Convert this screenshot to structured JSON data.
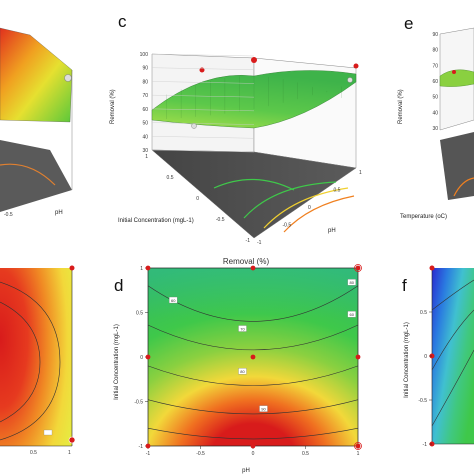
{
  "panel_labels": {
    "c": "c",
    "d": "d",
    "e": "e",
    "f": "f"
  },
  "colors": {
    "high": "#e0301e",
    "mid": "#f2e23a",
    "low_mid": "#3fc84a",
    "low": "#2a5fd6",
    "floor": "#555555"
  },
  "chart_data": [
    {
      "type": "surface",
      "panel": "a",
      "xlabel": "pH",
      "x_ticks": [
        "-0.5"
      ]
    },
    {
      "type": "surface",
      "panel": "c",
      "zlabel": "Removal (%)",
      "xlabel": "pH",
      "ylabel": "Initial Concentration (mgL-1)",
      "z_ticks": [
        "30",
        "40",
        "50",
        "60",
        "70",
        "80",
        "90",
        "100"
      ],
      "x_ticks": [
        "-1",
        "-0.5",
        "0",
        "0.5",
        "1"
      ],
      "y_ticks": [
        "-1",
        "-0.5",
        "0",
        "0.5",
        "1"
      ],
      "zlim": [
        30,
        100
      ]
    },
    {
      "type": "surface",
      "panel": "e",
      "zlabel": "Removal (%)",
      "xlabel": "Temperature (oC)",
      "z_ticks": [
        "30",
        "40",
        "50",
        "60",
        "70",
        "80",
        "90"
      ]
    },
    {
      "type": "heatmap",
      "panel": "b",
      "x_ticks": [
        "0.5",
        "1"
      ]
    },
    {
      "type": "heatmap",
      "panel": "d",
      "title": "Removal (%)",
      "xlabel": "pH",
      "ylabel": "Initial Concentration (mgL-1)",
      "x_ticks": [
        "-1",
        "-0.5",
        "0",
        "0.5",
        "1"
      ],
      "y_ticks": [
        "-1",
        "-0.5",
        "0",
        "0.5",
        "1"
      ],
      "xlim": [
        -1,
        1
      ],
      "ylim": [
        -1,
        1
      ],
      "contour_labels": [
        "60",
        "70",
        "80",
        "90",
        "80",
        "60"
      ],
      "design_points": [
        {
          "x": -1,
          "y": 1
        },
        {
          "x": 1,
          "y": 1
        },
        {
          "x": -1,
          "y": 0
        },
        {
          "x": 0,
          "y": 0
        },
        {
          "x": 1,
          "y": 0
        },
        {
          "x": 0,
          "y": 1
        },
        {
          "x": -1,
          "y": -1
        },
        {
          "x": 0,
          "y": -1
        },
        {
          "x": 1,
          "y": -1
        }
      ]
    },
    {
      "type": "heatmap",
      "panel": "f",
      "ylabel": "Initial Concentration (mgL-1)",
      "y_ticks": [
        "0.5",
        "0",
        "-0.5",
        "-1"
      ]
    }
  ]
}
